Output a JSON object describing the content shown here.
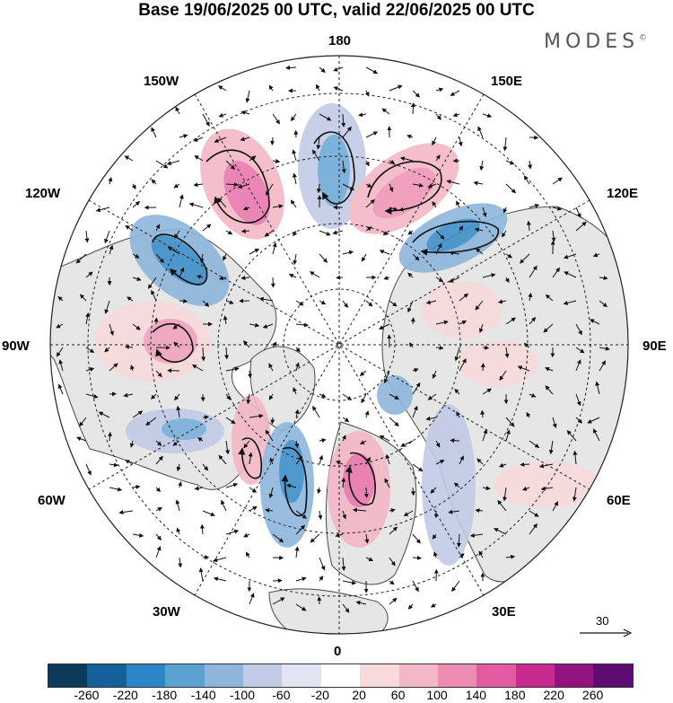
{
  "title": "Base 19/06/2025 00 UTC, valid 22/06/2025 00 UTC",
  "brand": "MODES",
  "brand_mark": "©",
  "longitude_labels": {
    "lon_180": "180",
    "lon_150e": "150E",
    "lon_120e": "120E",
    "lon_90e": "90E",
    "lon_60e": "60E",
    "lon_30e": "30E",
    "lon_0": "0",
    "lon_30w": "30W",
    "lon_60w": "60W",
    "lon_90w": "90W",
    "lon_120w": "120W",
    "lon_150w": "150W"
  },
  "reference_vector_label": "30",
  "colorbar": {
    "colors": [
      "#0c3a5a",
      "#14609a",
      "#2a86c4",
      "#5aa2d2",
      "#8eb6dc",
      "#c2cbe6",
      "#e3e4f1",
      "#ffffff",
      "#f8dadc",
      "#f3b7c6",
      "#ee8db2",
      "#e35ca2",
      "#c82a8f",
      "#92137f",
      "#5e0c72"
    ],
    "ticks": [
      "-260",
      "-220",
      "-180",
      "-140",
      "-100",
      "-60",
      "-20",
      "20",
      "60",
      "100",
      "140",
      "180",
      "220",
      "260"
    ]
  },
  "map_colors": {
    "land": "#e6e6e6",
    "ocean": "#ffffff",
    "coastline": "#4a4a4a",
    "grid": "#222222",
    "arrow": "#111111"
  }
}
